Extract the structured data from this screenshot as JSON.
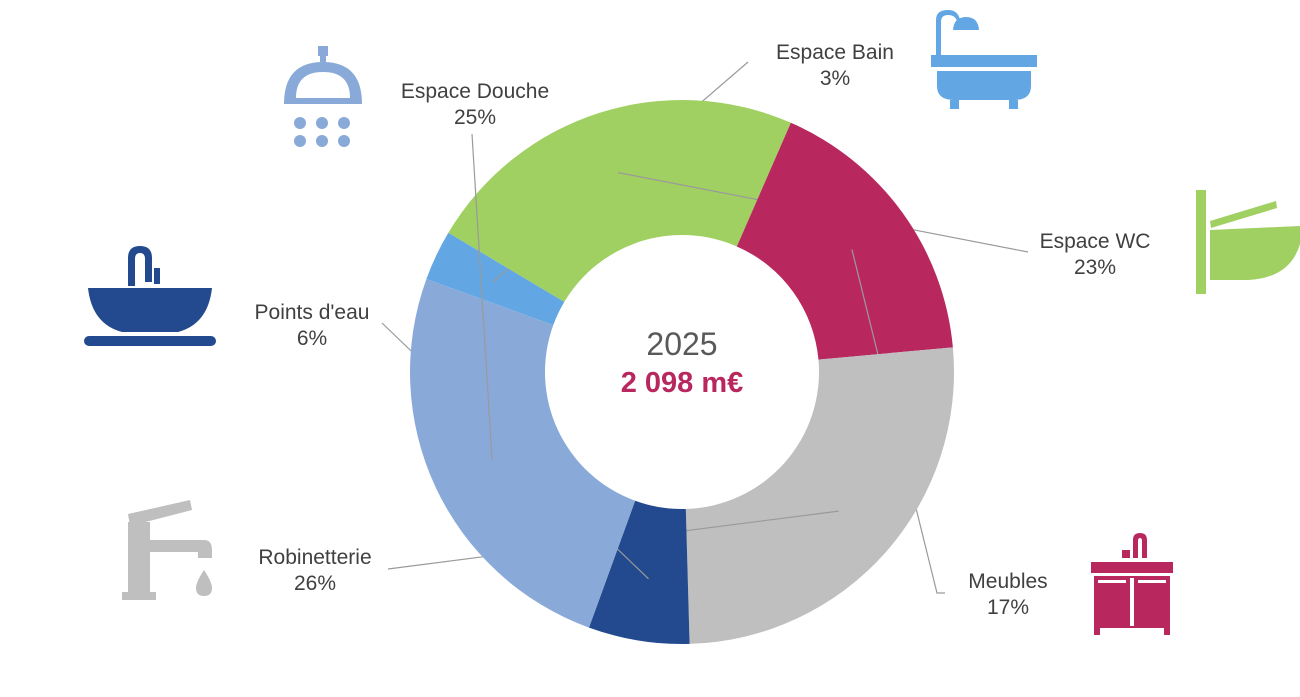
{
  "chart_data": {
    "type": "pie",
    "style": "donut",
    "center": {
      "year": "2025",
      "total": "2 098 m€"
    },
    "slices": [
      {
        "name": "Espace Bain",
        "percent": 3,
        "label": "3%",
        "color": "#62A7E4",
        "icon": "bathtub-icon"
      },
      {
        "name": "Espace WC",
        "percent": 23,
        "label": "23%",
        "color": "#A0CF62",
        "icon": "toilet-icon"
      },
      {
        "name": "Meubles",
        "percent": 17,
        "label": "17%",
        "color": "#B8275E",
        "icon": "vanity-cabinet-icon"
      },
      {
        "name": "Robinetterie",
        "percent": 26,
        "label": "26%",
        "color": "#BFBFBF",
        "icon": "faucet-icon"
      },
      {
        "name": "Points d'eau",
        "percent": 6,
        "label": "6%",
        "color": "#234A8E",
        "icon": "washbasin-icon"
      },
      {
        "name": "Espace Douche",
        "percent": 25,
        "label": "25%",
        "color": "#89AAD8",
        "icon": "shower-head-icon"
      }
    ],
    "total_color": "#B8275E"
  }
}
